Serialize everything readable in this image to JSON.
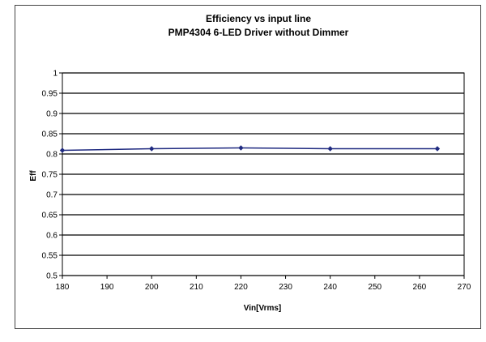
{
  "chart_data": {
    "type": "line",
    "title": "Efficiency vs input line",
    "subtitle": "PMP4304 6-LED Driver without Dimmer",
    "xlabel": "Vin[Vrms]",
    "ylabel": "Eff",
    "xlim": [
      180,
      270
    ],
    "ylim": [
      0.5,
      1
    ],
    "xticks": [
      180,
      190,
      200,
      210,
      220,
      230,
      240,
      250,
      260,
      270
    ],
    "yticks": [
      "0.5",
      "0.55",
      "0.6",
      "0.65",
      "0.7",
      "0.75",
      "0.8",
      "0.85",
      "0.9",
      "0.95",
      "1"
    ],
    "grid": "horizontal",
    "legend": "none",
    "series": [
      {
        "color": "#1f2a80",
        "x": [
          180,
          200,
          220,
          240,
          264
        ],
        "y": [
          0.809,
          0.813,
          0.815,
          0.813,
          0.813
        ]
      }
    ]
  }
}
